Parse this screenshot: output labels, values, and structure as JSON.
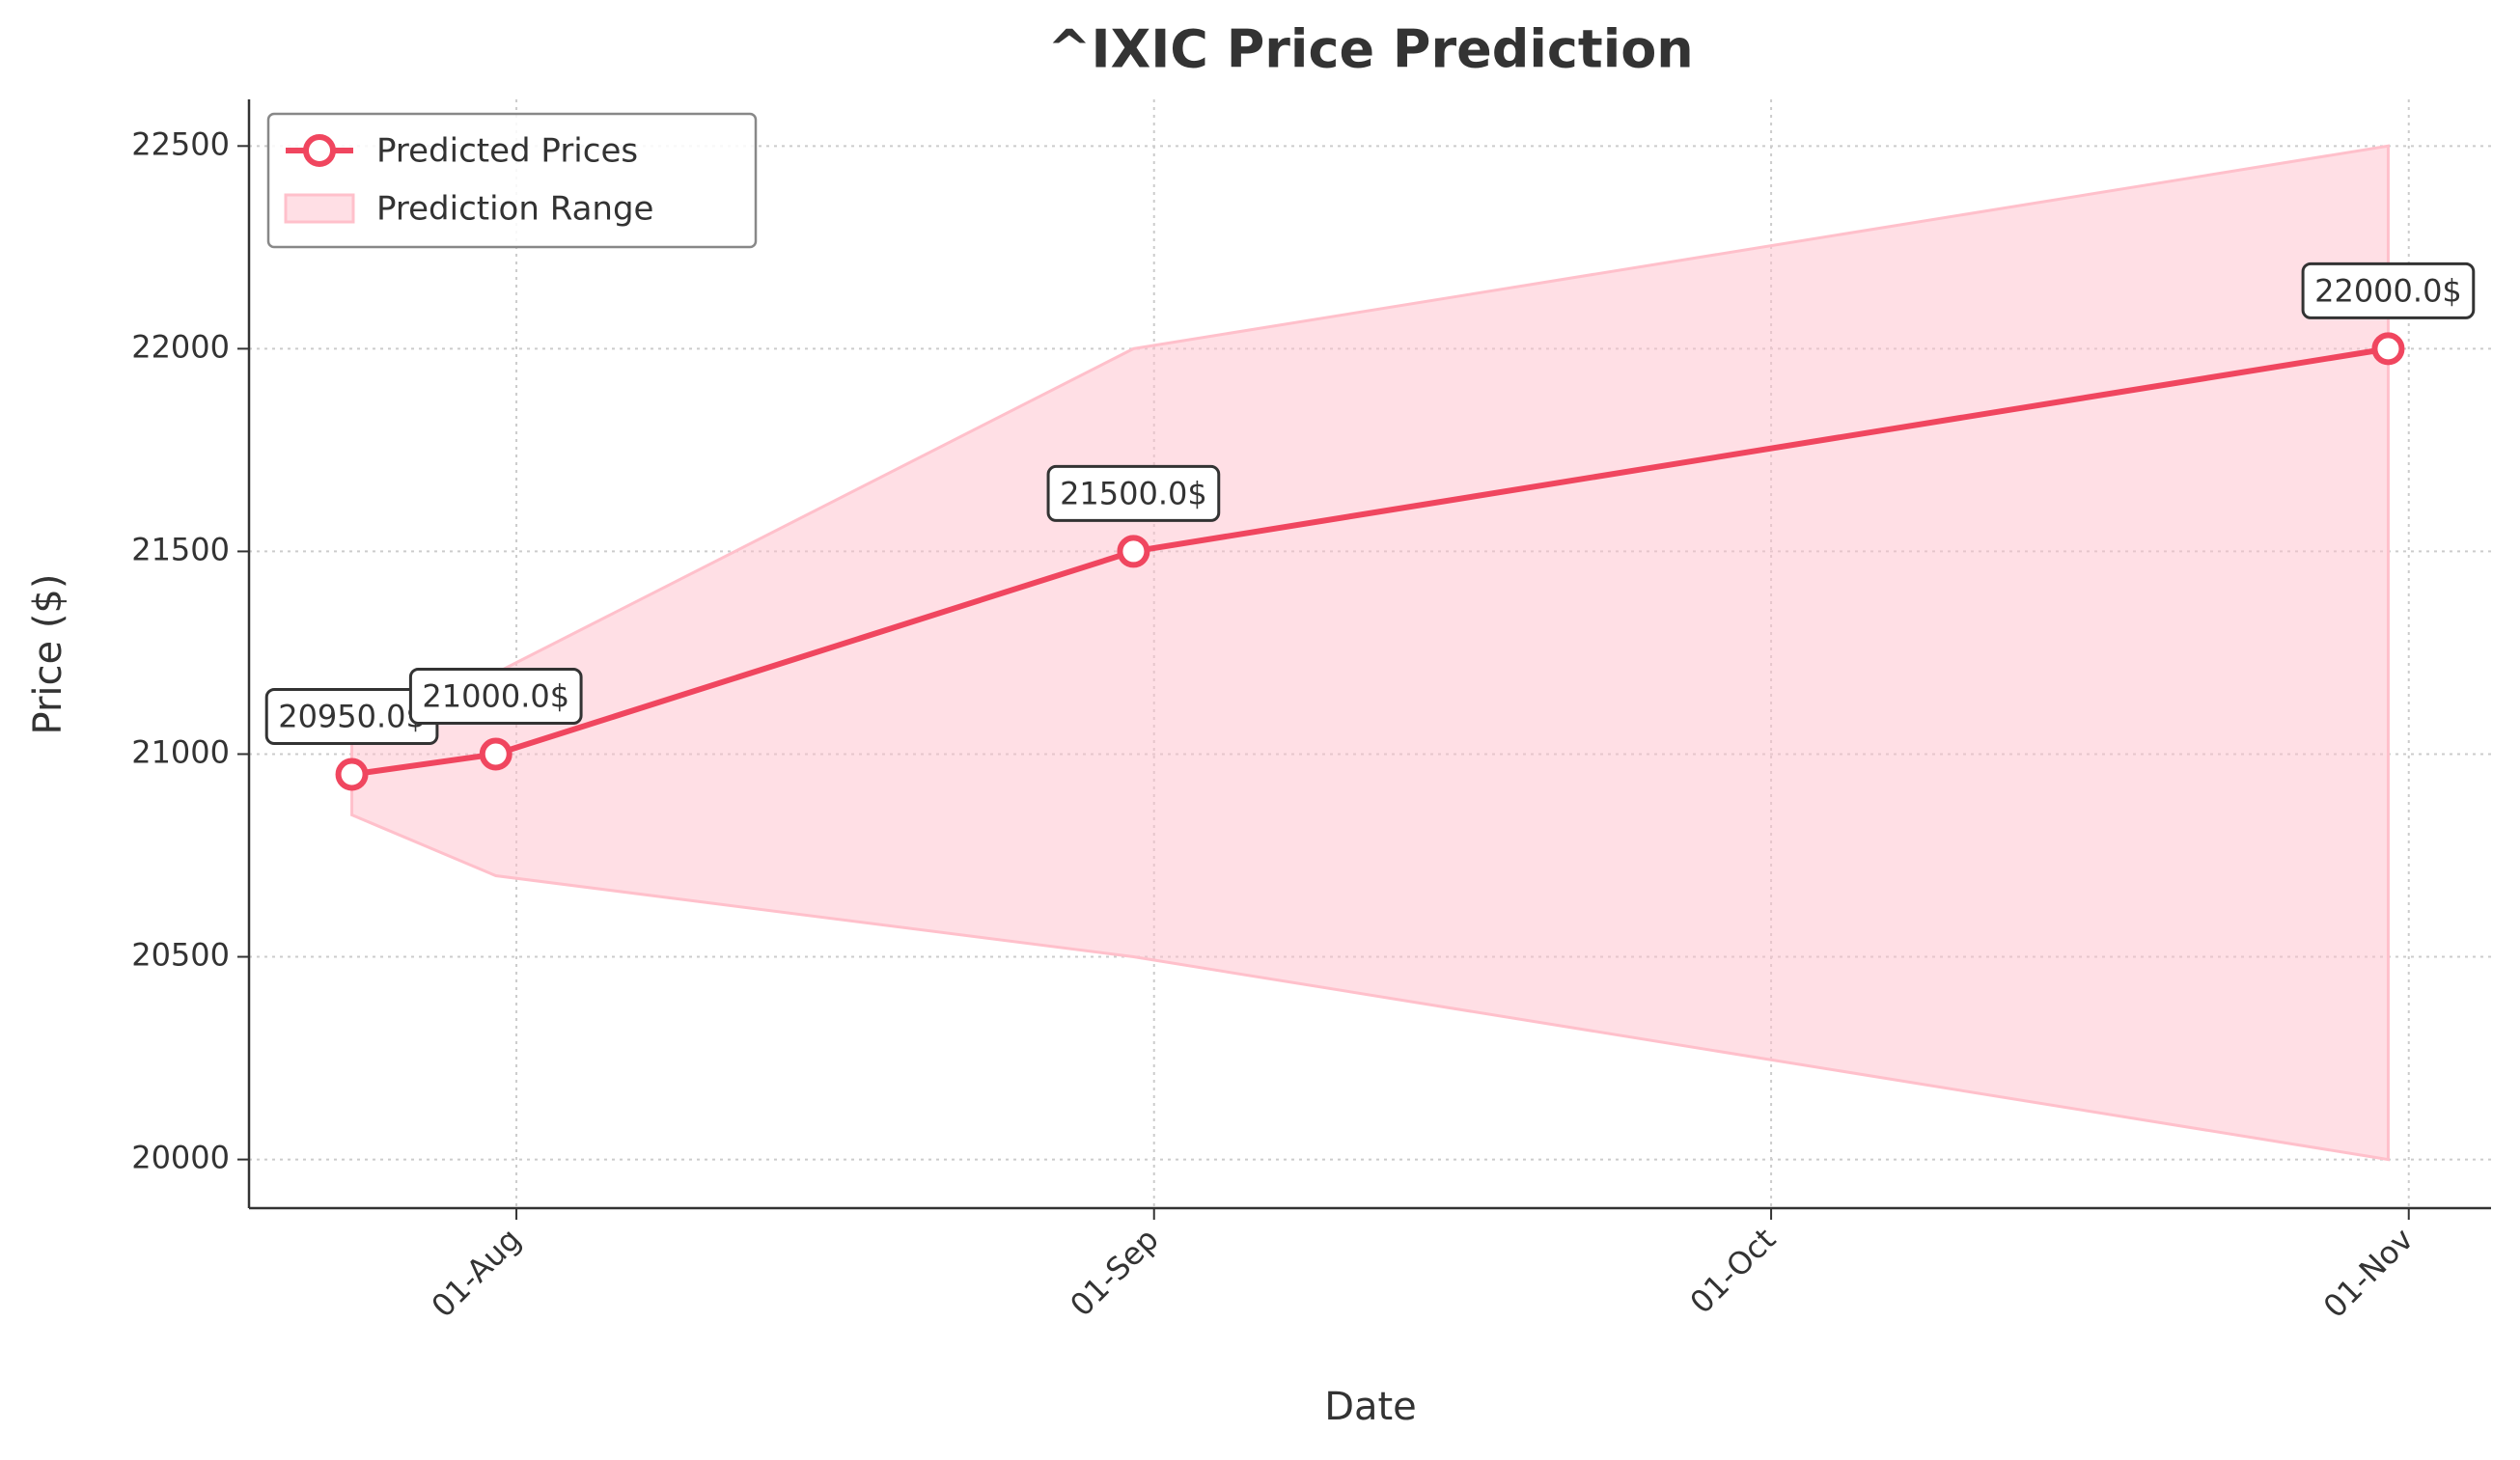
{
  "chart_data": {
    "type": "line",
    "title": "^IXIC Price Prediction",
    "xlabel": "Date",
    "ylabel": "Price ($)",
    "x": [
      "24-Jul",
      "31-Jul",
      "31-Aug",
      "31-Oct"
    ],
    "series": [
      {
        "name": "Predicted Prices",
        "color": "#f0465f",
        "values": [
          20950,
          21000,
          21500,
          22000
        ],
        "value_labels": [
          "20950.0$",
          "21000.0$",
          "21500.0$",
          "22000.0$"
        ]
      }
    ],
    "range": {
      "name": "Prediction Range",
      "color": "#ffc0cb",
      "lower": [
        20850,
        20700,
        20500,
        20000
      ],
      "upper": [
        21050,
        21200,
        22000,
        22500
      ]
    },
    "xlim": [
      "19-Jul",
      "05-Nov"
    ],
    "xticks": [
      "01-Aug",
      "01-Sep",
      "01-Oct",
      "01-Nov"
    ],
    "ylim": [
      19880,
      22615
    ],
    "yticks": [
      20000,
      20500,
      21000,
      21500,
      22000,
      22500
    ],
    "grid": true,
    "legend": "upper left"
  }
}
